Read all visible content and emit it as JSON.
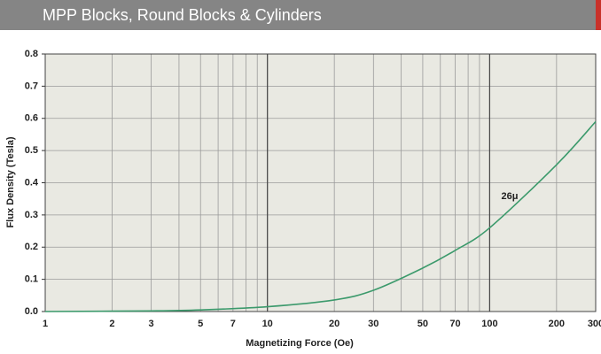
{
  "header": {
    "title": "MPP Blocks, Round Blocks & Cylinders"
  },
  "chart_data": {
    "type": "line",
    "log_x": true,
    "grid": true,
    "xlabel": "Magnetizing Force (Oe)",
    "ylabel": "Flux Density (Tesla)",
    "x": [
      1,
      3,
      5,
      10,
      20,
      30,
      50,
      70,
      100,
      200,
      300
    ],
    "series": [
      {
        "name": "26μ",
        "color": "#3c9a6c",
        "values": [
          0.0,
          0.002,
          0.005,
          0.015,
          0.036,
          0.066,
          0.135,
          0.19,
          0.26,
          0.456,
          0.59
        ]
      }
    ],
    "xlim": [
      1,
      300
    ],
    "xticks": [
      1,
      2,
      3,
      5,
      7,
      10,
      20,
      30,
      50,
      70,
      100,
      200,
      300
    ],
    "minor_xticks": [
      4,
      6,
      8,
      9,
      40,
      60,
      80,
      90
    ],
    "major_xticks": [
      10,
      100
    ],
    "ylim": [
      0,
      0.8
    ],
    "yticks": [
      {
        "value": 0,
        "label": "0.0"
      },
      0.1,
      0.2,
      0.3,
      0.4,
      0.5,
      0.6,
      0.7,
      0.8
    ]
  }
}
